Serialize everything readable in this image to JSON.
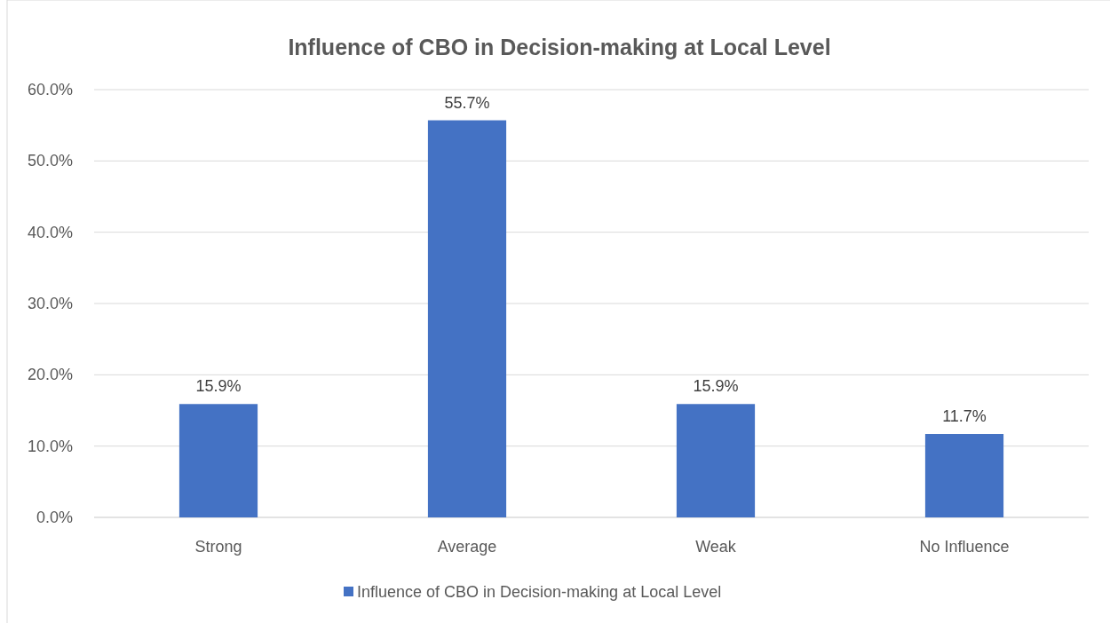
{
  "chart_data": {
    "type": "bar",
    "title": "Influence of CBO in Decision-making at Local Level",
    "categories": [
      "Strong",
      "Average",
      "Weak",
      "No Influence"
    ],
    "series": [
      {
        "name": "Influence of CBO in Decision-making at Local Level",
        "color": "#4472c4",
        "values": [
          15.9,
          55.7,
          15.9,
          11.7
        ],
        "value_labels": [
          "15.9%",
          "55.7%",
          "15.9%",
          "11.7%"
        ]
      }
    ],
    "ylim": [
      0,
      60
    ],
    "yticks": [
      {
        "value": 0,
        "label": "0.0%"
      },
      {
        "value": 10,
        "label": "10.0%"
      },
      {
        "value": 20,
        "label": "20.0%"
      },
      {
        "value": 30,
        "label": "30.0%"
      },
      {
        "value": 40,
        "label": "40.0%"
      },
      {
        "value": 50,
        "label": "50.0%"
      },
      {
        "value": 60,
        "label": "60.0%"
      }
    ],
    "grid": "y",
    "legend": "bottom"
  }
}
